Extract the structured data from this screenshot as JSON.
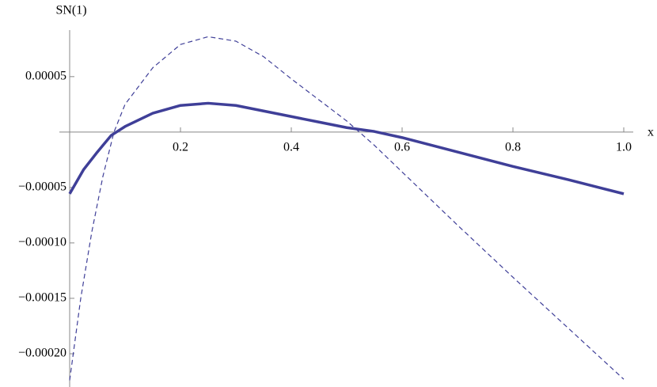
{
  "chart_data": {
    "type": "line",
    "xlabel": "x",
    "ylabel": "SN(1)",
    "xlim": [
      0,
      1.0
    ],
    "ylim": [
      -0.00023,
      9.2e-05
    ],
    "xticks": [
      0.2,
      0.4,
      0.6,
      0.8,
      {
        "value": 1.0,
        "label": "1.0"
      }
    ],
    "yticks": [
      {
        "value": -0.0002,
        "label": "−0.00020"
      },
      {
        "value": -0.00015,
        "label": "−0.00015"
      },
      {
        "value": -0.0001,
        "label": "−0.00010"
      },
      {
        "value": -5e-05,
        "label": "−0.00005"
      },
      {
        "value": 5e-05,
        "label": "0.00005"
      }
    ],
    "series": [
      {
        "color": "#3f3f98",
        "dash": false,
        "x": [
          0,
          0.025,
          0.05,
          0.075,
          0.1,
          0.15,
          0.2,
          0.25,
          0.3,
          0.35,
          0.4,
          0.45,
          0.5,
          0.55,
          0.6,
          0.7,
          0.8,
          0.9,
          1.0
        ],
        "values": [
          -5.57e-05,
          -3.4e-05,
          -1.8e-05,
          -3e-06,
          5e-06,
          1.7e-05,
          2.4e-05,
          2.6e-05,
          2.4e-05,
          1.9e-05,
          1.4e-05,
          9e-06,
          4e-06,
          5e-07,
          -5e-06,
          -1.8e-05,
          -3.1e-05,
          -4.3e-05,
          -5.57e-05
        ]
      },
      {
        "color": "#3f3f98",
        "dash": true,
        "x": [
          0,
          0.02,
          0.04,
          0.06,
          0.08,
          0.1,
          0.15,
          0.2,
          0.25,
          0.3,
          0.35,
          0.4,
          0.45,
          0.5,
          0.55,
          0.6,
          0.7,
          0.8,
          0.9,
          1.0
        ],
        "values": [
          -0.000224,
          -0.00015,
          -9e-05,
          -4e-05,
          0,
          2.5e-05,
          5.8e-05,
          7.9e-05,
          8.6e-05,
          8.2e-05,
          6.8e-05,
          4.8e-05,
          2.9e-05,
          1e-05,
          -1.2e-05,
          -3.6e-05,
          -8.4e-05,
          -0.000131,
          -0.000177,
          -0.000223
        ]
      }
    ]
  }
}
